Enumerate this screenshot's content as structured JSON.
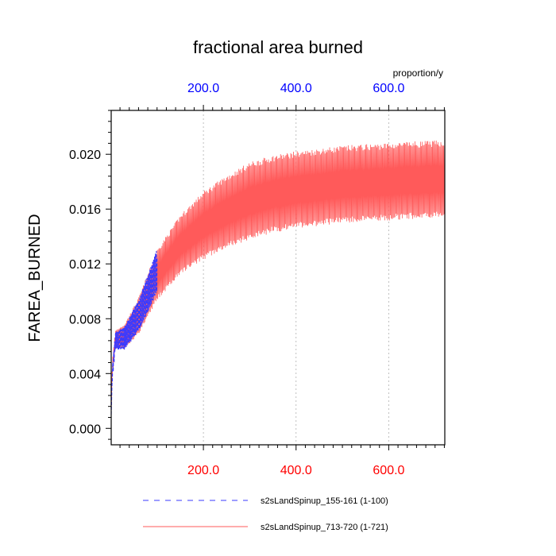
{
  "chart_data": {
    "type": "line",
    "title": "fractional area burned",
    "ylabel": "FAREA_BURNED",
    "units_label": "proportion/y",
    "xlim": [
      1,
      721
    ],
    "ylim": [
      -0.0012,
      0.0232
    ],
    "yticks": [
      0.0,
      0.004,
      0.008,
      0.012,
      0.016,
      0.02
    ],
    "ytick_labels": [
      "0.000",
      "0.004",
      "0.008",
      "0.012",
      "0.016",
      "0.020"
    ],
    "xticks": [
      200,
      400,
      600
    ],
    "xtick_labels_bottom": [
      "200.0",
      "400.0",
      "600.0"
    ],
    "xtick_labels_top": [
      "200.0",
      "400.0",
      "600.0"
    ],
    "bottom_axis_color": "#ff0000",
    "top_axis_color": "#0000ff",
    "grid": "vertical dotted at 200, 400, 600",
    "series": [
      {
        "name": "s2sLandSpinup_713-720 (1-721)",
        "style": "solid",
        "color": "#ff5a5a",
        "x_range": [
          1,
          721
        ],
        "description": "annual oscillation around a rising mean",
        "mean_profile": [
          [
            1,
            0.0035
          ],
          [
            10,
            0.0065
          ],
          [
            30,
            0.0067
          ],
          [
            60,
            0.0082
          ],
          [
            100,
            0.0112
          ],
          [
            150,
            0.0134
          ],
          [
            200,
            0.0148
          ],
          [
            250,
            0.0158
          ],
          [
            300,
            0.0166
          ],
          [
            350,
            0.0171
          ],
          [
            400,
            0.0174
          ],
          [
            450,
            0.0176
          ],
          [
            500,
            0.0178
          ],
          [
            550,
            0.0179
          ],
          [
            600,
            0.018
          ],
          [
            650,
            0.0181
          ],
          [
            721,
            0.0182
          ]
        ],
        "amplitude_profile": [
          [
            1,
            0.0005
          ],
          [
            50,
            0.0011
          ],
          [
            100,
            0.0017
          ],
          [
            200,
            0.0023
          ],
          [
            300,
            0.0026
          ],
          [
            721,
            0.0026
          ]
        ],
        "period_years": 4
      },
      {
        "name": "s2sLandSpinup_155-161 (1-100)",
        "style": "dashed",
        "color": "#3a3aff",
        "x_range": [
          1,
          100
        ],
        "description": "dashed blue series overlapping early red series",
        "mean_profile": [
          [
            1,
            0.003
          ],
          [
            10,
            0.0064
          ],
          [
            30,
            0.0066
          ],
          [
            60,
            0.0082
          ],
          [
            100,
            0.0115
          ]
        ],
        "amplitude_profile": [
          [
            1,
            0.0006
          ],
          [
            50,
            0.0012
          ],
          [
            100,
            0.0018
          ]
        ],
        "period_years": 4
      }
    ],
    "legend": [
      {
        "label": "s2sLandSpinup_155-161 (1-100)",
        "style": "dashed",
        "color": "#3a3aff"
      },
      {
        "label": "s2sLandSpinup_713-720 (1-721)",
        "style": "solid",
        "color": "#ff5a5a"
      }
    ],
    "legend_position": "bottom-center"
  }
}
